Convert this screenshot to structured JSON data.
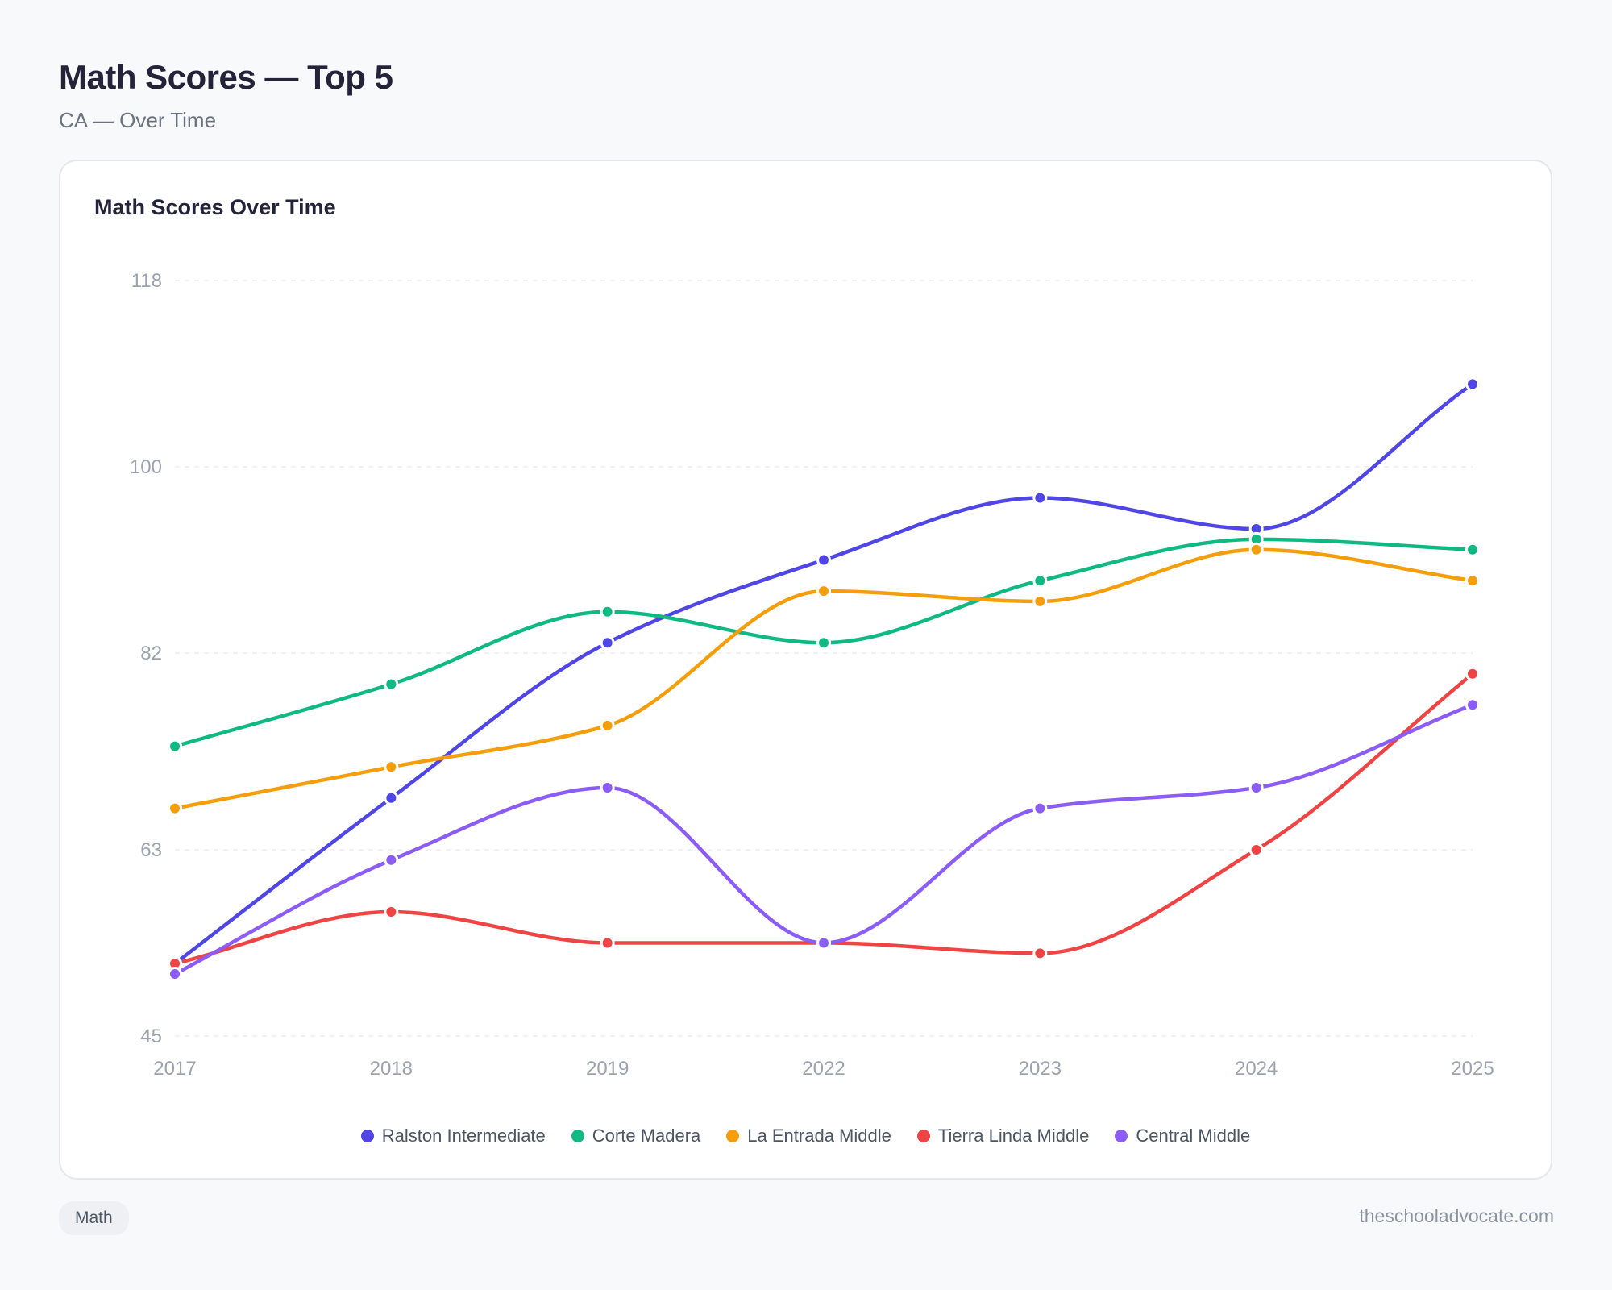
{
  "page": {
    "title": "Math Scores — Top 5",
    "subtitle": "CA — Over Time",
    "tag": "Math",
    "source": "theschooladvocate.com"
  },
  "chart_data": {
    "type": "line",
    "title": "Math Scores Over Time",
    "categories": [
      "2017",
      "2018",
      "2019",
      "2022",
      "2023",
      "2024",
      "2025"
    ],
    "y_ticks": [
      45,
      63,
      82,
      100,
      118
    ],
    "ylim": [
      45,
      118
    ],
    "grid": true,
    "legend_position": "bottom",
    "series": [
      {
        "name": "Ralston Intermediate",
        "color": "#4f46e5",
        "values": [
          52,
          68,
          83,
          91,
          97,
          94,
          108
        ]
      },
      {
        "name": "Corte Madera",
        "color": "#10b981",
        "values": [
          73,
          79,
          86,
          83,
          89,
          93,
          92
        ]
      },
      {
        "name": "La Entrada Middle",
        "color": "#f59e0b",
        "values": [
          67,
          71,
          75,
          88,
          87,
          92,
          89
        ]
      },
      {
        "name": "Tierra Linda Middle",
        "color": "#ef4444",
        "values": [
          52,
          57,
          54,
          54,
          53,
          63,
          80
        ]
      },
      {
        "name": "Central Middle",
        "color": "#8b5cf6",
        "values": [
          51,
          62,
          69,
          54,
          67,
          69,
          77
        ]
      }
    ]
  }
}
